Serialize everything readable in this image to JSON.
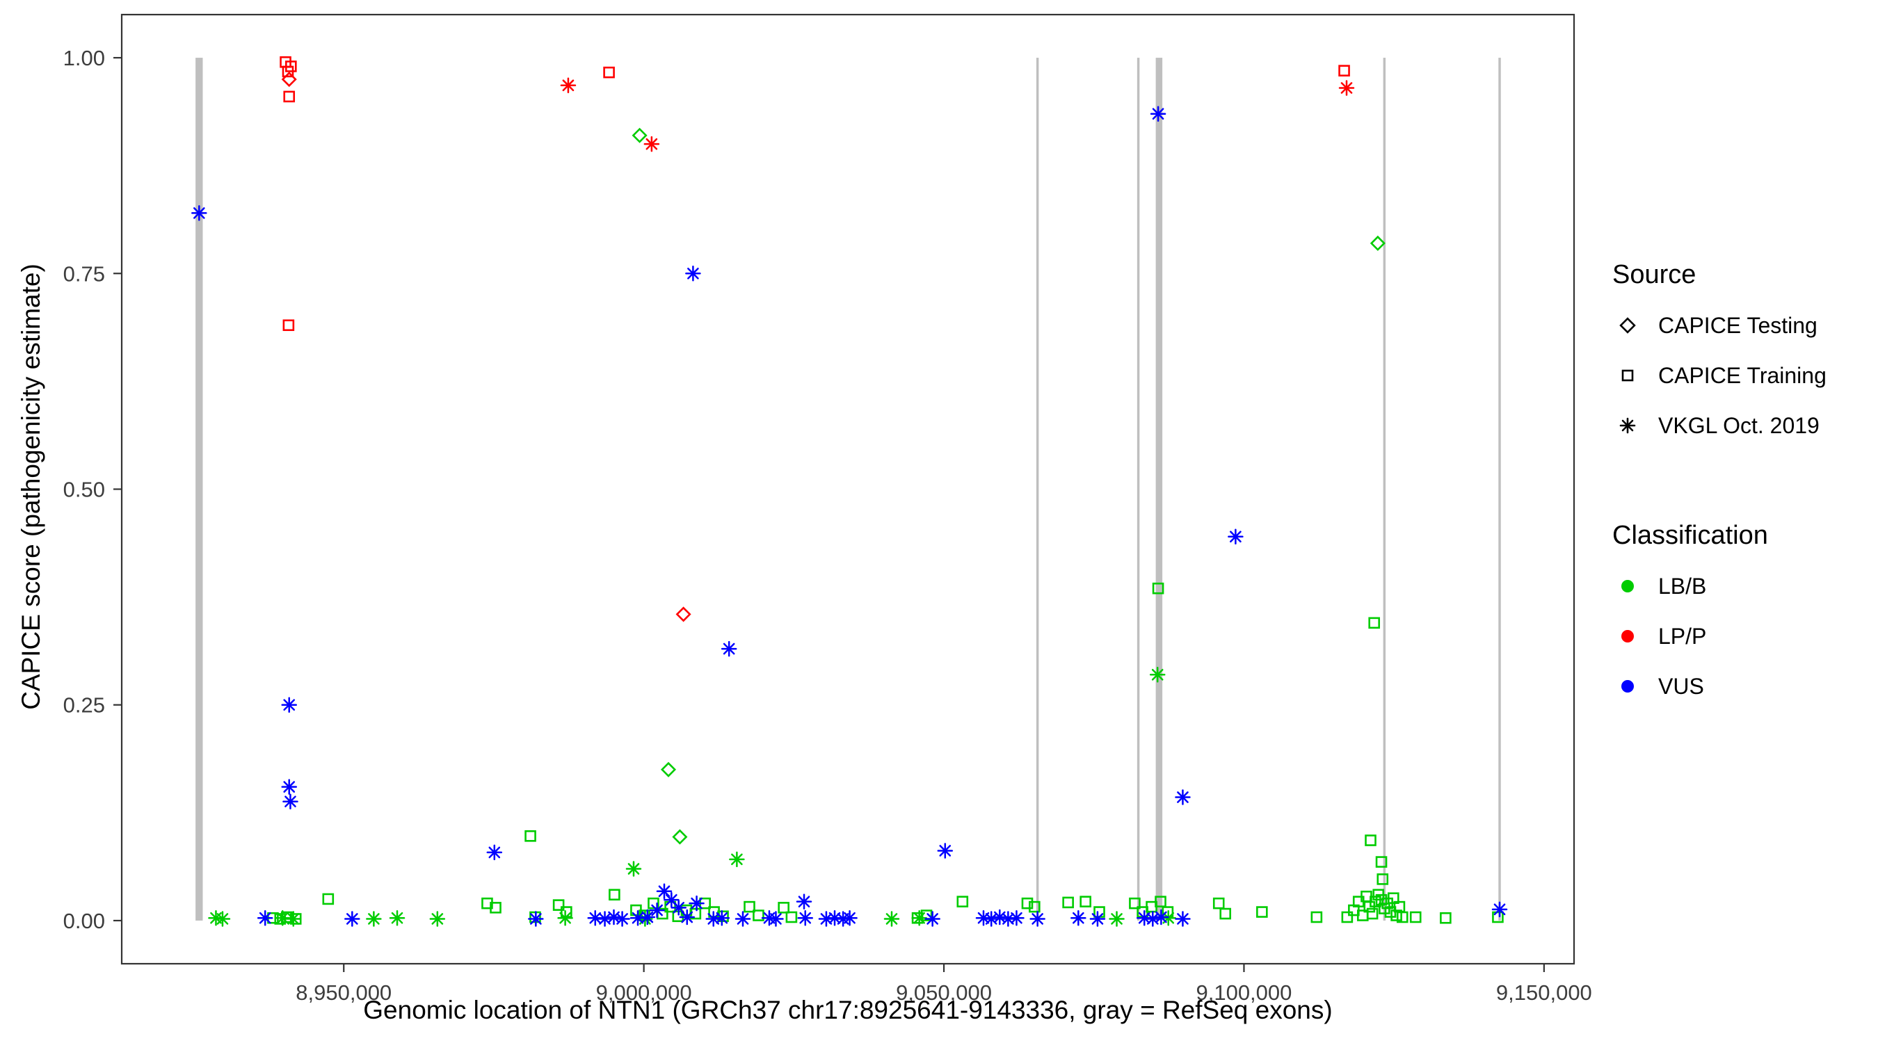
{
  "figure": {
    "background": "#ffffff",
    "panel_border_color": "#333333",
    "tick_color": "#333333",
    "tick_label_color": "#3d3d3d",
    "text_color": "#000000"
  },
  "chart_data": {
    "type": "scatter",
    "title": "",
    "xlabel": "Genomic location of NTN1 (GRCh37 chr17:8925641-9143336, gray = RefSeq exons)",
    "ylabel": "CAPICE score (pathogenicity estimate)",
    "xlim": [
      8913000,
      9155000
    ],
    "ylim": [
      -0.05,
      1.05
    ],
    "x_ticks": [
      8950000,
      9000000,
      9050000,
      9100000,
      9150000
    ],
    "x_tick_labels": [
      "8,950,000",
      "9,000,000",
      "9,050,000",
      "9,100,000",
      "9,150,000"
    ],
    "y_ticks": [
      0.0,
      0.25,
      0.5,
      0.75,
      1.0
    ],
    "y_tick_labels": [
      "0.00",
      "0.25",
      "0.50",
      "0.75",
      "1.00"
    ],
    "grid": false,
    "legend_position": "right",
    "exon_color": "#bfbfbf",
    "exons": [
      {
        "start": 8925300,
        "end": 8926500
      },
      {
        "start": 9065400,
        "end": 9065800
      },
      {
        "start": 9082200,
        "end": 9082600
      },
      {
        "start": 9085300,
        "end": 9086400
      },
      {
        "start": 9123200,
        "end": 9123600
      },
      {
        "start": 9142400,
        "end": 9142800
      }
    ],
    "legend": {
      "source_title": "Source",
      "source_items": [
        {
          "label": "CAPICE Testing",
          "marker": "diamond"
        },
        {
          "label": "CAPICE Training",
          "marker": "square"
        },
        {
          "label": "VKGL Oct. 2019",
          "marker": "asterisk"
        }
      ],
      "classification_title": "Classification",
      "classification_items": [
        {
          "label": "LB/B",
          "color": "#00CC00"
        },
        {
          "label": "LP/P",
          "color": "#FF0000"
        },
        {
          "label": "VUS",
          "color": "#0000FF"
        }
      ]
    },
    "series": [
      {
        "name": "CAPICE Testing / LB/B",
        "source": "CAPICE Testing",
        "classification": "LB/B",
        "marker": "diamond",
        "color": "#00CC00",
        "points": [
          [
            8999300,
            0.91
          ],
          [
            9122300,
            0.785
          ],
          [
            9004100,
            0.175
          ],
          [
            9006000,
            0.097
          ]
        ]
      },
      {
        "name": "CAPICE Testing / LP/P",
        "source": "CAPICE Testing",
        "classification": "LP/P",
        "marker": "diamond",
        "color": "#FF0000",
        "points": [
          [
            8940900,
            0.975
          ],
          [
            9006600,
            0.355
          ]
        ]
      },
      {
        "name": "CAPICE Training / LP/P",
        "source": "CAPICE Training",
        "classification": "LP/P",
        "marker": "square",
        "color": "#FF0000",
        "points": [
          [
            8940300,
            0.995
          ],
          [
            8941200,
            0.99
          ],
          [
            8940700,
            0.984
          ],
          [
            8940900,
            0.955
          ],
          [
            8940800,
            0.69
          ],
          [
            8994200,
            0.983
          ],
          [
            9116700,
            0.985
          ]
        ]
      },
      {
        "name": "CAPICE Training / LB/B",
        "source": "CAPICE Training",
        "classification": "LB/B",
        "marker": "square",
        "color": "#00CC00",
        "points": [
          [
            8981100,
            0.098
          ],
          [
            9085700,
            0.385
          ],
          [
            9121700,
            0.345
          ],
          [
            9121100,
            0.093
          ],
          [
            9122900,
            0.068
          ],
          [
            9123100,
            0.048
          ],
          [
            8947400,
            0.025
          ],
          [
            8938200,
            0.003
          ],
          [
            8939400,
            0.002
          ],
          [
            8940500,
            0.004
          ],
          [
            8942000,
            0.002
          ],
          [
            8973900,
            0.02
          ],
          [
            8975300,
            0.015
          ],
          [
            8981900,
            0.004
          ],
          [
            8985800,
            0.018
          ],
          [
            8987100,
            0.01
          ],
          [
            8995100,
            0.03
          ],
          [
            8998700,
            0.012
          ],
          [
            9000100,
            0.006
          ],
          [
            9001600,
            0.02
          ],
          [
            9003100,
            0.008
          ],
          [
            9004400,
            0.016
          ],
          [
            9005700,
            0.005
          ],
          [
            9007100,
            0.012
          ],
          [
            9008600,
            0.008
          ],
          [
            9010200,
            0.02
          ],
          [
            9011700,
            0.01
          ],
          [
            9013200,
            0.005
          ],
          [
            9017600,
            0.016
          ],
          [
            9019100,
            0.006
          ],
          [
            9023300,
            0.015
          ],
          [
            9024600,
            0.004
          ],
          [
            9045600,
            0.003
          ],
          [
            9047100,
            0.006
          ],
          [
            9053100,
            0.022
          ],
          [
            9063900,
            0.02
          ],
          [
            9065100,
            0.016
          ],
          [
            9070700,
            0.021
          ],
          [
            9073600,
            0.022
          ],
          [
            9075900,
            0.01
          ],
          [
            9081800,
            0.02
          ],
          [
            9083100,
            0.01
          ],
          [
            9084600,
            0.016
          ],
          [
            9086100,
            0.022
          ],
          [
            9087300,
            0.01
          ],
          [
            9095800,
            0.02
          ],
          [
            9096900,
            0.008
          ],
          [
            9103000,
            0.01
          ],
          [
            9112100,
            0.004
          ],
          [
            9117200,
            0.004
          ],
          [
            9118300,
            0.012
          ],
          [
            9119100,
            0.022
          ],
          [
            9119800,
            0.006
          ],
          [
            9120400,
            0.028
          ],
          [
            9120900,
            0.016
          ],
          [
            9121400,
            0.008
          ],
          [
            9121900,
            0.022
          ],
          [
            9122400,
            0.03
          ],
          [
            9122900,
            0.024
          ],
          [
            9123400,
            0.014
          ],
          [
            9123900,
            0.02
          ],
          [
            9124400,
            0.01
          ],
          [
            9124900,
            0.026
          ],
          [
            9125400,
            0.006
          ],
          [
            9125900,
            0.016
          ],
          [
            9126400,
            0.004
          ],
          [
            9128600,
            0.004
          ],
          [
            9133600,
            0.003
          ],
          [
            9142300,
            0.004
          ]
        ]
      },
      {
        "name": "VKGL Oct. 2019 / LP/P",
        "source": "VKGL Oct. 2019",
        "classification": "LP/P",
        "marker": "asterisk",
        "color": "#FF0000",
        "points": [
          [
            8987400,
            0.968
          ],
          [
            9001300,
            0.9
          ],
          [
            9117100,
            0.965
          ]
        ]
      },
      {
        "name": "VKGL Oct. 2019 / LB/B",
        "source": "VKGL Oct. 2019",
        "classification": "LB/B",
        "marker": "asterisk",
        "color": "#00CC00",
        "points": [
          [
            8998300,
            0.06
          ],
          [
            9015500,
            0.071
          ],
          [
            9085600,
            0.285
          ],
          [
            8928700,
            0.003
          ],
          [
            8929800,
            0.002
          ],
          [
            8939800,
            0.003
          ],
          [
            8941600,
            0.002
          ],
          [
            8955000,
            0.002
          ],
          [
            8958900,
            0.003
          ],
          [
            8965600,
            0.002
          ],
          [
            8986900,
            0.003
          ],
          [
            9000200,
            0.002
          ],
          [
            9041300,
            0.002
          ],
          [
            9045900,
            0.003
          ],
          [
            9078800,
            0.002
          ],
          [
            9087400,
            0.003
          ]
        ]
      },
      {
        "name": "VKGL Oct. 2019 / VUS",
        "source": "VKGL Oct. 2019",
        "classification": "VUS",
        "marker": "asterisk",
        "color": "#0000FF",
        "points": [
          [
            8925900,
            0.82
          ],
          [
            9085700,
            0.935
          ],
          [
            9008200,
            0.75
          ],
          [
            9098600,
            0.445
          ],
          [
            9014200,
            0.315
          ],
          [
            8940900,
            0.25
          ],
          [
            8940900,
            0.155
          ],
          [
            8941100,
            0.138
          ],
          [
            9089800,
            0.143
          ],
          [
            9050200,
            0.081
          ],
          [
            8975100,
            0.079
          ],
          [
            9142600,
            0.013
          ],
          [
            8936900,
            0.003
          ],
          [
            8951400,
            0.002
          ],
          [
            8982000,
            0.002
          ],
          [
            8991900,
            0.003
          ],
          [
            8993500,
            0.002
          ],
          [
            8995000,
            0.004
          ],
          [
            8996400,
            0.002
          ],
          [
            8999000,
            0.003
          ],
          [
            9000600,
            0.004
          ],
          [
            9002200,
            0.012
          ],
          [
            9003400,
            0.034
          ],
          [
            9004600,
            0.024
          ],
          [
            9005800,
            0.015
          ],
          [
            9007200,
            0.004
          ],
          [
            9008800,
            0.02
          ],
          [
            9011600,
            0.002
          ],
          [
            9013000,
            0.003
          ],
          [
            9016500,
            0.002
          ],
          [
            9020900,
            0.003
          ],
          [
            9022000,
            0.002
          ],
          [
            9026700,
            0.022
          ],
          [
            9026900,
            0.003
          ],
          [
            9030400,
            0.002
          ],
          [
            9031800,
            0.003
          ],
          [
            9033200,
            0.002
          ],
          [
            9034300,
            0.003
          ],
          [
            9048100,
            0.002
          ],
          [
            9056600,
            0.003
          ],
          [
            9057900,
            0.002
          ],
          [
            9059300,
            0.004
          ],
          [
            9060700,
            0.002
          ],
          [
            9062100,
            0.003
          ],
          [
            9065600,
            0.002
          ],
          [
            9072400,
            0.003
          ],
          [
            9075600,
            0.002
          ],
          [
            9083400,
            0.003
          ],
          [
            9084800,
            0.002
          ],
          [
            9086200,
            0.004
          ],
          [
            9089800,
            0.002
          ]
        ]
      }
    ]
  }
}
